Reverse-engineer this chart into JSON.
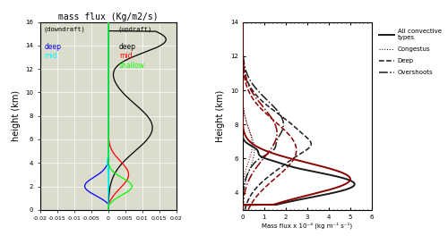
{
  "title_left": "mass flux (Kg/m2/s)",
  "ylabel_left": "height (km)",
  "ylabel_right": "Height (km)",
  "xlabel_right": "Mass flux x 10⁻⁴ (kg m⁻¹ s⁻¹)",
  "xlim_left": [
    -0.02,
    0.02
  ],
  "xticks_left": [
    -0.02,
    -0.015,
    -0.01,
    -0.005,
    0,
    0.005,
    0.01,
    0.015,
    0.02
  ],
  "xticklabels_left": [
    "-0.02",
    "-0.015",
    "-0.01",
    "-0.005",
    "0",
    "0.005",
    "0.01",
    "0.015",
    "0.02"
  ],
  "ylim_left": [
    0,
    16
  ],
  "yticks_left": [
    0,
    2,
    4,
    6,
    8,
    10,
    12,
    14,
    16
  ],
  "xlim_right": [
    0,
    6
  ],
  "xticks_right": [
    0,
    1,
    2,
    3,
    4,
    5,
    6
  ],
  "ylim_right": [
    3,
    14
  ],
  "yticks_right": [
    4,
    6,
    8,
    10,
    12,
    14
  ],
  "bg_color": "#dcdccc",
  "tick_fontsize": 5,
  "label_fontsize": 7,
  "title_fontsize": 7
}
